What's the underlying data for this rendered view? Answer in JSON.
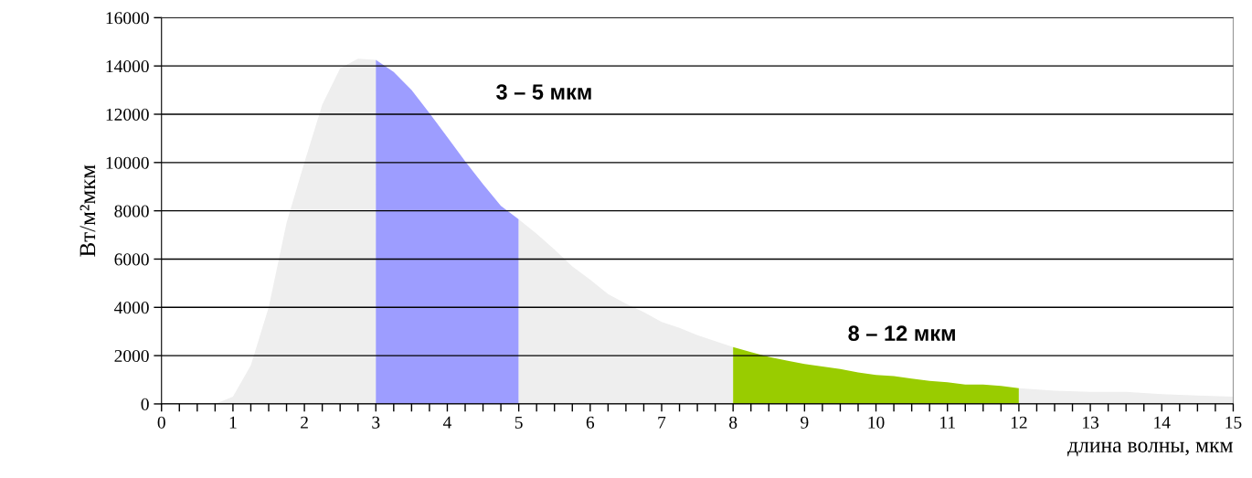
{
  "chart_data": {
    "type": "area",
    "xlabel": "длина волны, мкм",
    "ylabel": "Вт/м²мкм",
    "series": [
      {
        "color": "#eeeeee",
        "x": [
          0,
          0.25,
          0.5,
          0.75,
          1.0,
          1.25,
          1.5,
          1.75,
          2.0,
          2.25,
          2.5,
          2.75,
          3.0
        ],
        "values": [
          0,
          0,
          0,
          0,
          300,
          1600,
          4000,
          7500,
          10000,
          12400,
          13900,
          14300,
          14250
        ]
      },
      {
        "color": "#9d9dff",
        "x": [
          3.0,
          3.25,
          3.5,
          3.75,
          4.0,
          4.25,
          4.5,
          4.75,
          5.0
        ],
        "values": [
          14250,
          13750,
          13000,
          12050,
          11050,
          10050,
          9100,
          8200,
          7650
        ]
      },
      {
        "color": "#eeeeee",
        "x": [
          5.0,
          5.25,
          5.5,
          5.75,
          6.0,
          6.25,
          6.5,
          6.75,
          7.0,
          7.25,
          7.5,
          7.75,
          8.0
        ],
        "values": [
          7650,
          7050,
          6400,
          5700,
          5150,
          4550,
          4150,
          3800,
          3400,
          3150,
          2850,
          2600,
          2350
        ]
      },
      {
        "color": "#99cc00",
        "x": [
          8.0,
          8.25,
          8.5,
          8.75,
          9.0,
          9.25,
          9.5,
          9.75,
          10.0,
          10.25,
          10.5,
          10.75,
          11.0,
          11.25,
          11.5,
          11.75,
          12.0
        ],
        "values": [
          2350,
          2150,
          1950,
          1800,
          1650,
          1550,
          1450,
          1300,
          1200,
          1150,
          1050,
          950,
          900,
          800,
          800,
          750,
          650
        ]
      },
      {
        "color": "#eeeeee",
        "x": [
          12.0,
          12.5,
          13.0,
          13.5,
          14.0,
          14.5,
          15.0
        ],
        "values": [
          650,
          550,
          500,
          500,
          400,
          350,
          300
        ]
      }
    ],
    "xlim": [
      0,
      15
    ],
    "xticks": [
      0,
      {
        "value": 0.25,
        "label": null
      },
      {
        "value": 0.5,
        "label": null
      },
      {
        "value": 0.75,
        "label": null
      },
      1,
      {
        "value": 1.25,
        "label": null
      },
      {
        "value": 1.5,
        "label": null
      },
      {
        "value": 1.75,
        "label": null
      },
      2,
      {
        "value": 2.25,
        "label": null
      },
      {
        "value": 2.5,
        "label": null
      },
      {
        "value": 2.75,
        "label": null
      },
      3,
      {
        "value": 3.25,
        "label": null
      },
      {
        "value": 3.5,
        "label": null
      },
      {
        "value": 3.75,
        "label": null
      },
      4,
      {
        "value": 4.25,
        "label": null
      },
      {
        "value": 4.5,
        "label": null
      },
      {
        "value": 4.75,
        "label": null
      },
      5,
      {
        "value": 5.25,
        "label": null
      },
      {
        "value": 5.5,
        "label": null
      },
      {
        "value": 5.75,
        "label": null
      },
      6,
      {
        "value": 6.25,
        "label": null
      },
      {
        "value": 6.5,
        "label": null
      },
      {
        "value": 6.75,
        "label": null
      },
      7,
      {
        "value": 7.25,
        "label": null
      },
      {
        "value": 7.5,
        "label": null
      },
      {
        "value": 7.75,
        "label": null
      },
      8,
      {
        "value": 8.25,
        "label": null
      },
      {
        "value": 8.5,
        "label": null
      },
      {
        "value": 8.75,
        "label": null
      },
      9,
      {
        "value": 9.25,
        "label": null
      },
      {
        "value": 9.5,
        "label": null
      },
      {
        "value": 9.75,
        "label": null
      },
      10,
      {
        "value": 10.25,
        "label": null
      },
      {
        "value": 10.5,
        "label": null
      },
      {
        "value": 10.75,
        "label": null
      },
      11,
      {
        "value": 11.25,
        "label": null
      },
      {
        "value": 11.5,
        "label": null
      },
      {
        "value": 11.75,
        "label": null
      },
      12,
      {
        "value": 12.25,
        "label": null
      },
      {
        "value": 12.5,
        "label": null
      },
      {
        "value": 12.75,
        "label": null
      },
      13,
      {
        "value": 13.25,
        "label": null
      },
      {
        "value": 13.5,
        "label": null
      },
      {
        "value": 13.75,
        "label": null
      },
      14,
      {
        "value": 14.25,
        "label": null
      },
      {
        "value": 14.5,
        "label": null
      },
      {
        "value": 14.75,
        "label": null
      },
      15
    ],
    "ylim": [
      0,
      16000
    ],
    "yticks": [
      0,
      2000,
      4000,
      6000,
      8000,
      10000,
      12000,
      14000,
      16000
    ],
    "grid": "y",
    "legend": false,
    "annotations": [
      "3 – 5 мкм",
      "8 – 12 мкм"
    ]
  }
}
